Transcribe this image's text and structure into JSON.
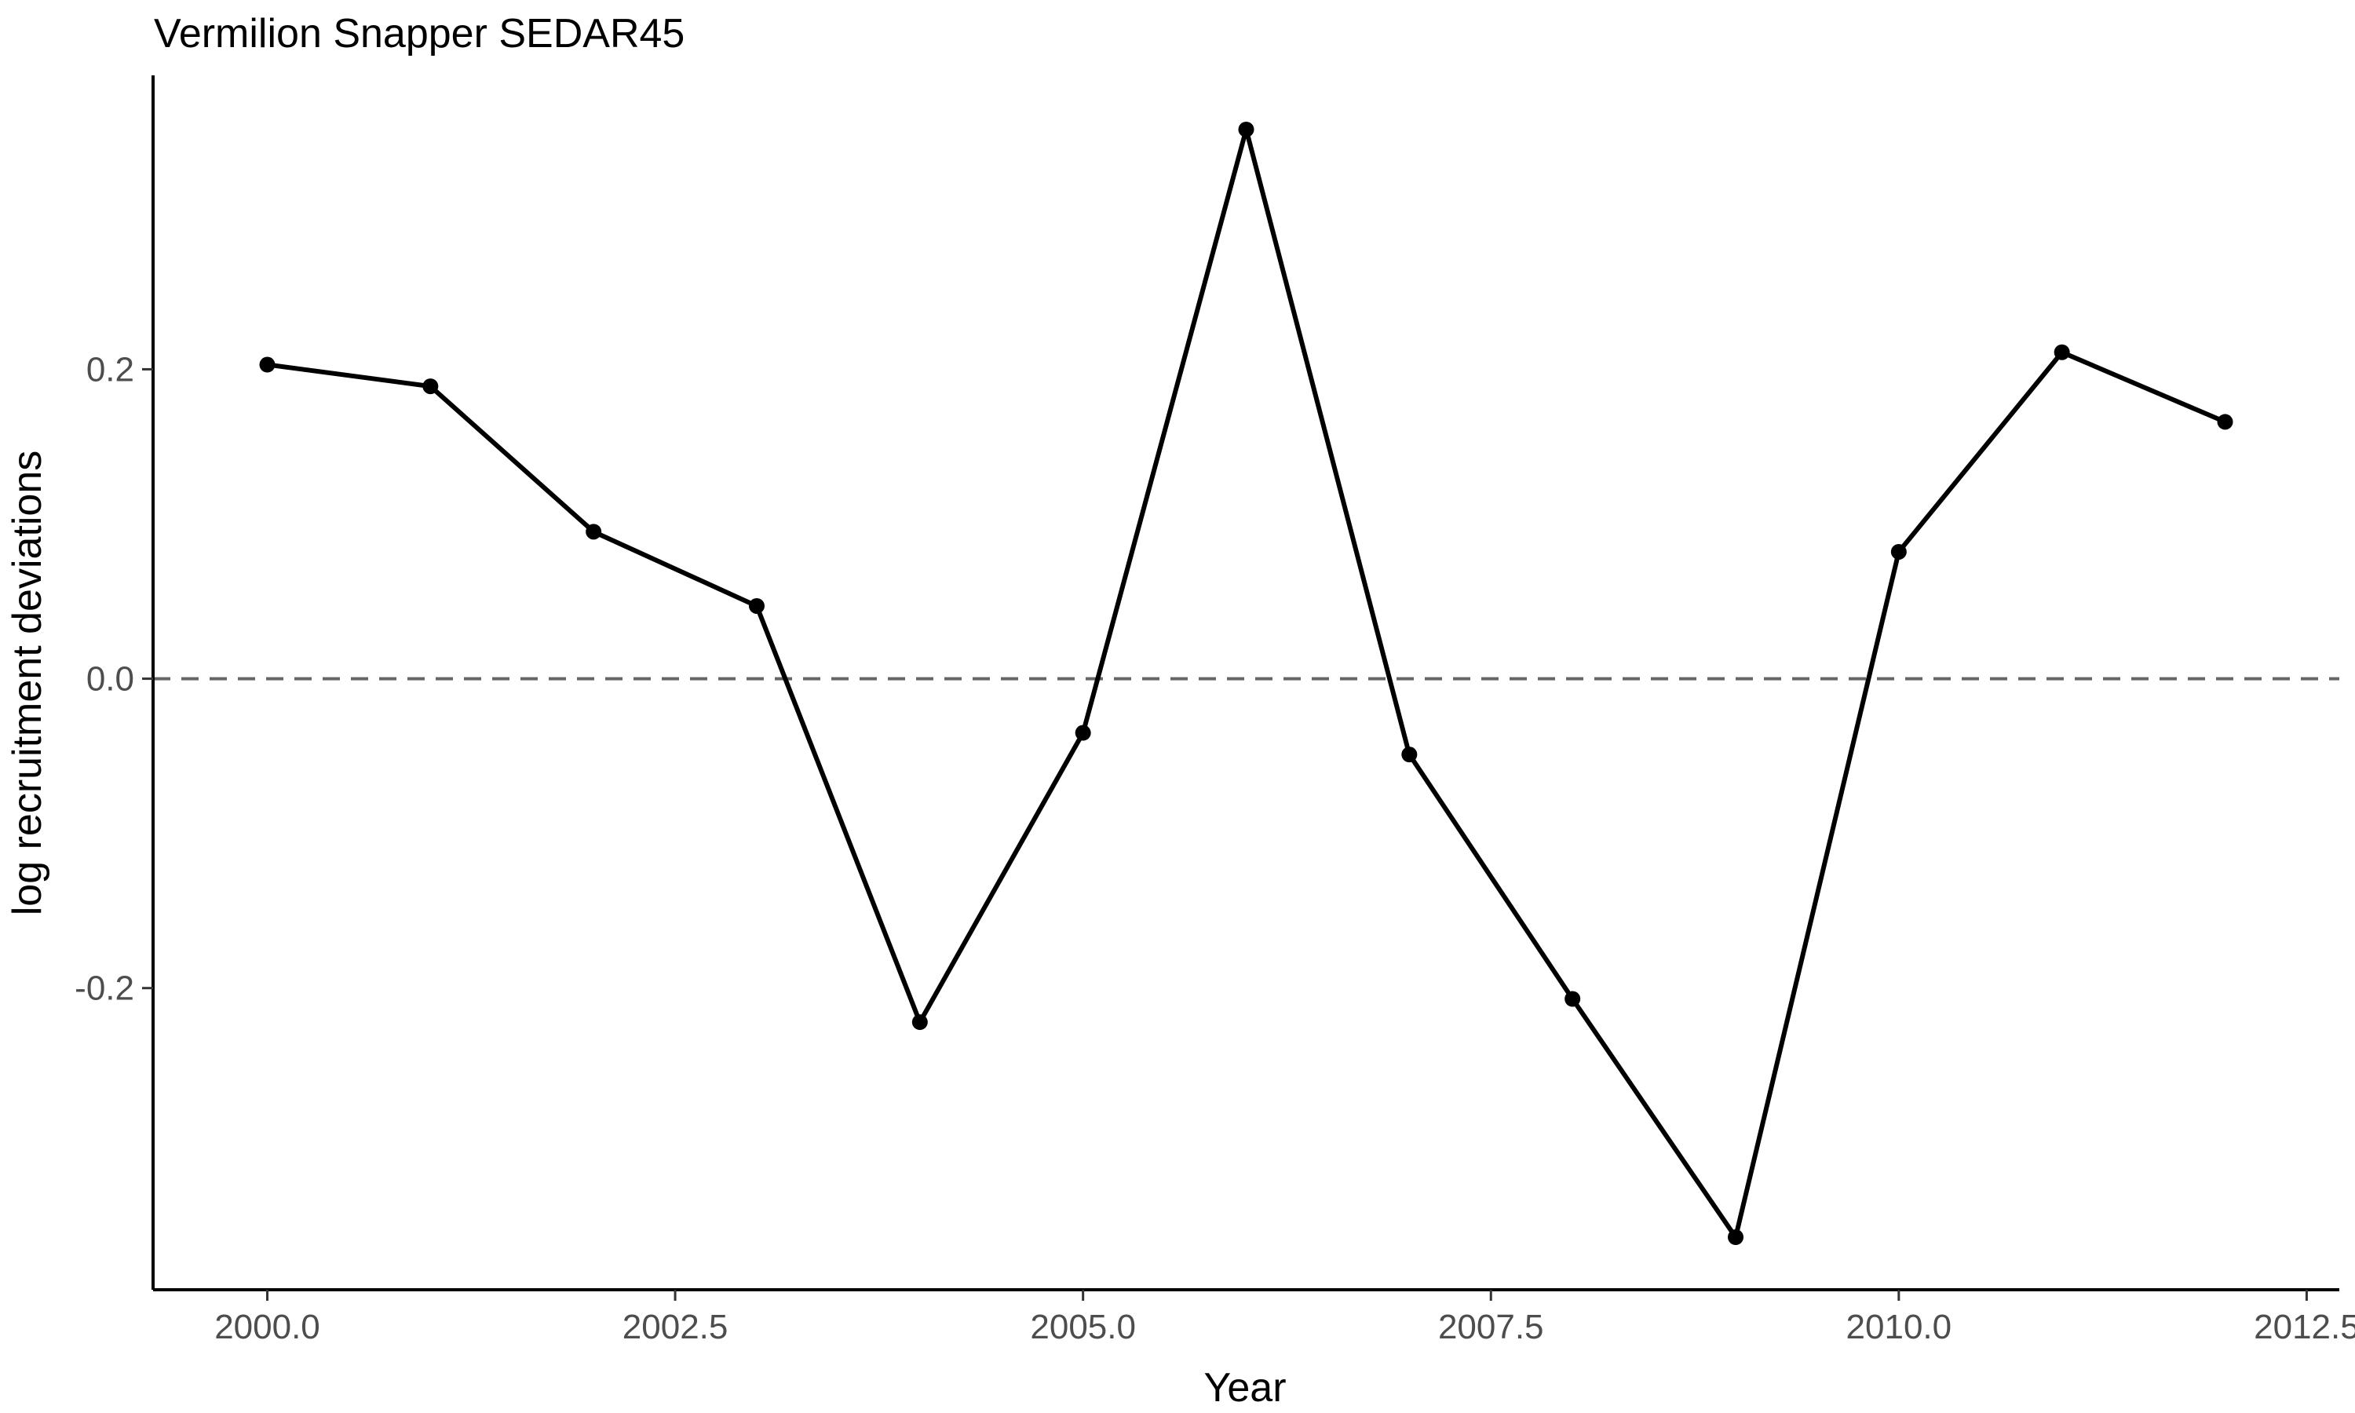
{
  "chart_data": {
    "type": "line",
    "title": "Vermilion Snapper SEDAR45",
    "xlabel": "Year",
    "ylabel": "log recruitment deviations",
    "x": [
      2000,
      2001,
      2002,
      2003,
      2004,
      2005,
      2006,
      2007,
      2008,
      2009,
      2010,
      2011,
      2012
    ],
    "series": [
      {
        "values": [
          0.203,
          0.189,
          0.095,
          0.047,
          -0.222,
          -0.035,
          0.355,
          -0.049,
          -0.207,
          -0.361,
          0.082,
          0.211,
          0.166
        ]
      }
    ],
    "xlim": [
      1999.3,
      2012.7
    ],
    "ylim": [
      -0.395,
      0.39
    ],
    "xticks": [
      2000,
      2002.5,
      2005,
      2007.5,
      2010,
      2012.5
    ],
    "xtick_labels": [
      "2000.0",
      "2002.5",
      "2005.0",
      "2007.5",
      "2010.0",
      "2012.5"
    ],
    "yticks": [
      -0.2,
      0.0,
      0.2
    ],
    "ytick_labels": [
      "-0.2",
      "0.0",
      "0.2"
    ],
    "reference_line": {
      "y": 0,
      "style": "dashed",
      "color": "#666666"
    },
    "line_color": "#000000",
    "point_color": "#000000",
    "grid": false,
    "legend": "none"
  }
}
